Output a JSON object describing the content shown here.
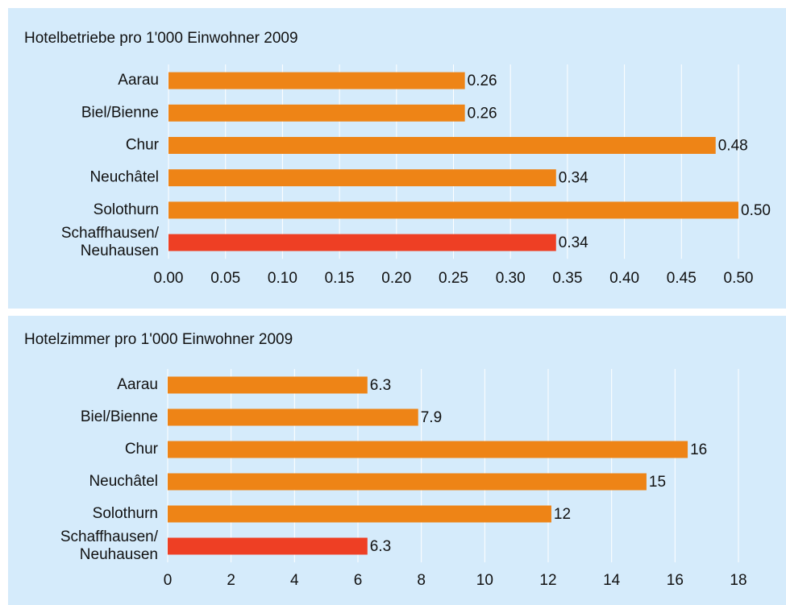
{
  "chart_data": [
    {
      "type": "bar",
      "title": "Hotelbetriebe pro 1'000 Einwohner 2009",
      "categories": [
        "Aarau",
        "Biel/Bienne",
        "Chur",
        "Neuchâtel",
        "Solothurn",
        "Schaffhausen/\nNeuhausen"
      ],
      "values": [
        0.26,
        0.26,
        0.48,
        0.34,
        0.5,
        0.34
      ],
      "value_labels": [
        "0.26",
        "0.26",
        "0.48",
        "0.34",
        "0.50",
        "0.34"
      ],
      "colors": [
        "#ee8416",
        "#ee8416",
        "#ee8416",
        "#ee8416",
        "#ee8416",
        "#ee3f24"
      ],
      "xlim": [
        0,
        0.5
      ],
      "xticks": [
        {
          "value": 0,
          "label": "0.00"
        },
        {
          "value": 0.05,
          "label": "0.05"
        },
        {
          "value": 0.1,
          "label": "0.10"
        },
        {
          "value": 0.15,
          "label": "0.15"
        },
        {
          "value": 0.2,
          "label": "0.20"
        },
        {
          "value": 0.25,
          "label": "0.25"
        },
        {
          "value": 0.3,
          "label": "0.30"
        },
        {
          "value": 0.35,
          "label": "0.35"
        },
        {
          "value": 0.4,
          "label": "0.40"
        },
        {
          "value": 0.45,
          "label": "0.45"
        },
        {
          "value": 0.5,
          "label": "0.50"
        }
      ],
      "grid": true
    },
    {
      "type": "bar",
      "title": "Hotelzimmer pro 1'000 Einwohner 2009",
      "categories": [
        "Aarau",
        "Biel/Bienne",
        "Chur",
        "Neuchâtel",
        "Solothurn",
        "Schaffhausen/\nNeuhausen"
      ],
      "values": [
        6.3,
        7.9,
        16.4,
        15.1,
        12.1,
        6.3
      ],
      "value_labels": [
        "6.3",
        "7.9",
        "16",
        "15",
        "12",
        "6.3"
      ],
      "colors": [
        "#ee8416",
        "#ee8416",
        "#ee8416",
        "#ee8416",
        "#ee8416",
        "#ee3f24"
      ],
      "xlim": [
        0,
        18
      ],
      "xticks": [
        0,
        2,
        4,
        6,
        8,
        10,
        12,
        14,
        16,
        18
      ],
      "grid": true
    }
  ]
}
